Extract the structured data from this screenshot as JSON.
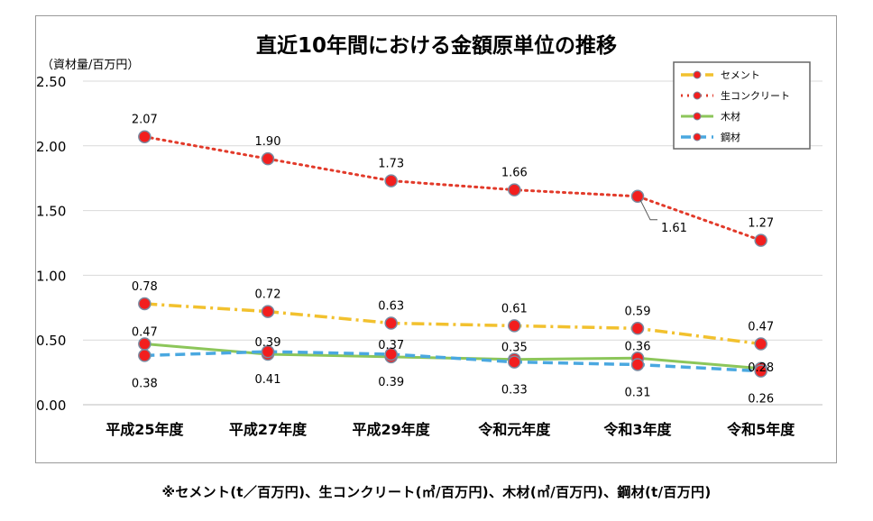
{
  "chart_data": {
    "type": "line",
    "title": "直近10年間における金額原単位の推移",
    "ylabel": "（資材量/百万円）",
    "categories": [
      "平成25年度",
      "平成27年度",
      "平成29年度",
      "令和元年度",
      "令和3年度",
      "令和5年度"
    ],
    "ylim": [
      0,
      2.5
    ],
    "yticks": [
      "0.00",
      "0.50",
      "1.00",
      "1.50",
      "2.00",
      "2.50"
    ],
    "grid": true,
    "legend_position": "top-right",
    "series": [
      {
        "name": "セメント",
        "values": [
          0.78,
          0.72,
          0.63,
          0.61,
          0.59,
          0.47
        ],
        "labels": [
          "0.78",
          "0.72",
          "0.63",
          "0.61",
          "0.59",
          "0.47"
        ],
        "color": "#f2c12e",
        "line_style": "dash-dot"
      },
      {
        "name": "生コンクリート",
        "values": [
          2.07,
          1.9,
          1.73,
          1.66,
          1.61,
          1.27
        ],
        "labels": [
          "2.07",
          "1.90",
          "1.73",
          "1.66",
          "1.61",
          "1.27"
        ],
        "color": "#e23a2a",
        "line_style": "dotted"
      },
      {
        "name": "木材",
        "values": [
          0.47,
          0.39,
          0.37,
          0.35,
          0.36,
          0.28
        ],
        "labels": [
          "0.47",
          "0.39",
          "0.37",
          "0.35",
          "0.36",
          "0.28"
        ],
        "color": "#8cc65a",
        "line_style": "solid"
      },
      {
        "name": "鋼材",
        "values": [
          0.38,
          0.41,
          0.39,
          0.33,
          0.31,
          0.26
        ],
        "labels": [
          "0.38",
          "0.41",
          "0.39",
          "0.33",
          "0.31",
          "0.26"
        ],
        "color": "#4aa8e0",
        "line_style": "dashed"
      }
    ],
    "marker": {
      "fill": "#f21e1e",
      "stroke": "#7a8aa0"
    }
  },
  "footnote": "※セメント(t／百万円)、生コンクリート(㎥/百万円)、木材(㎥/百万円)、鋼材(t/百万円)"
}
